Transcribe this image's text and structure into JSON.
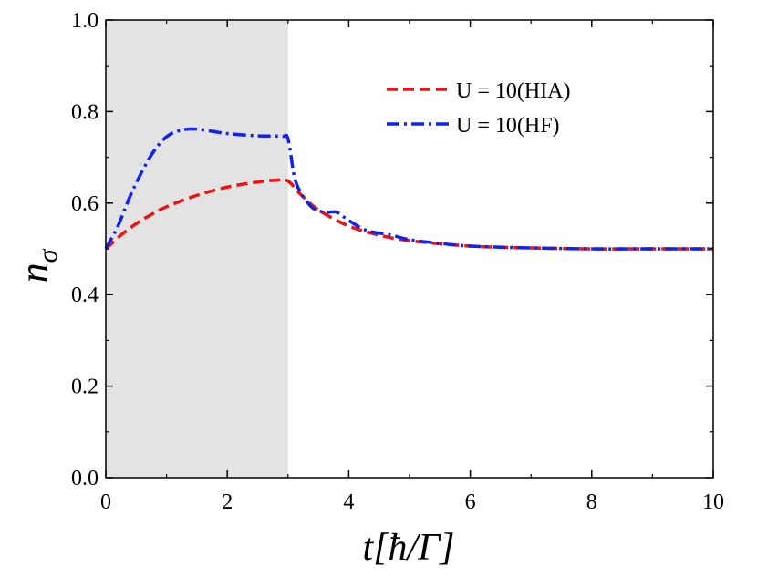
{
  "chart_data": {
    "type": "line",
    "title": "",
    "xlabel": "t[ħ/Γ]",
    "ylabel": "nσ",
    "xlim": [
      0,
      10
    ],
    "ylim": [
      0.0,
      1.0
    ],
    "xticks": [
      0,
      2,
      4,
      6,
      8,
      10
    ],
    "yticks": [
      0.0,
      0.2,
      0.4,
      0.6,
      0.8,
      1.0
    ],
    "xtick_labels": [
      "0",
      "2",
      "4",
      "6",
      "8",
      "10"
    ],
    "ytick_labels": [
      "0.0",
      "0.2",
      "0.4",
      "0.6",
      "0.8",
      "1.0"
    ],
    "grid": false,
    "legend_position": "top-right",
    "shaded_region": {
      "x_start": 0,
      "x_end": 3,
      "color": "#e3e3e3"
    },
    "series": [
      {
        "name": "U = 10(HIA)",
        "color": "#ee1111",
        "style": "dashed",
        "x": [
          0,
          0.25,
          0.5,
          0.75,
          1.0,
          1.5,
          2.0,
          2.5,
          2.8,
          3.0,
          3.2,
          3.5,
          4.0,
          4.5,
          5.0,
          6.0,
          7.0,
          8.0,
          9.0,
          10.0
        ],
        "y": [
          0.5,
          0.53,
          0.555,
          0.575,
          0.592,
          0.617,
          0.635,
          0.646,
          0.65,
          0.648,
          0.62,
          0.585,
          0.55,
          0.53,
          0.518,
          0.506,
          0.502,
          0.5,
          0.5,
          0.5
        ]
      },
      {
        "name": "U = 10(HF)",
        "color": "#1122ee",
        "style": "dashdot",
        "x": [
          0,
          0.2,
          0.4,
          0.6,
          0.8,
          1.0,
          1.2,
          1.4,
          1.6,
          2.0,
          2.5,
          2.9,
          3.0,
          3.1,
          3.2,
          3.4,
          3.6,
          3.8,
          4.0,
          4.3,
          4.7,
          5.0,
          5.5,
          6.0,
          7.0,
          8.0,
          9.0,
          10.0
        ],
        "y": [
          0.5,
          0.55,
          0.615,
          0.67,
          0.715,
          0.745,
          0.758,
          0.762,
          0.76,
          0.752,
          0.747,
          0.746,
          0.74,
          0.66,
          0.625,
          0.59,
          0.58,
          0.58,
          0.562,
          0.54,
          0.53,
          0.52,
          0.512,
          0.506,
          0.502,
          0.5,
          0.5,
          0.5
        ]
      }
    ]
  }
}
